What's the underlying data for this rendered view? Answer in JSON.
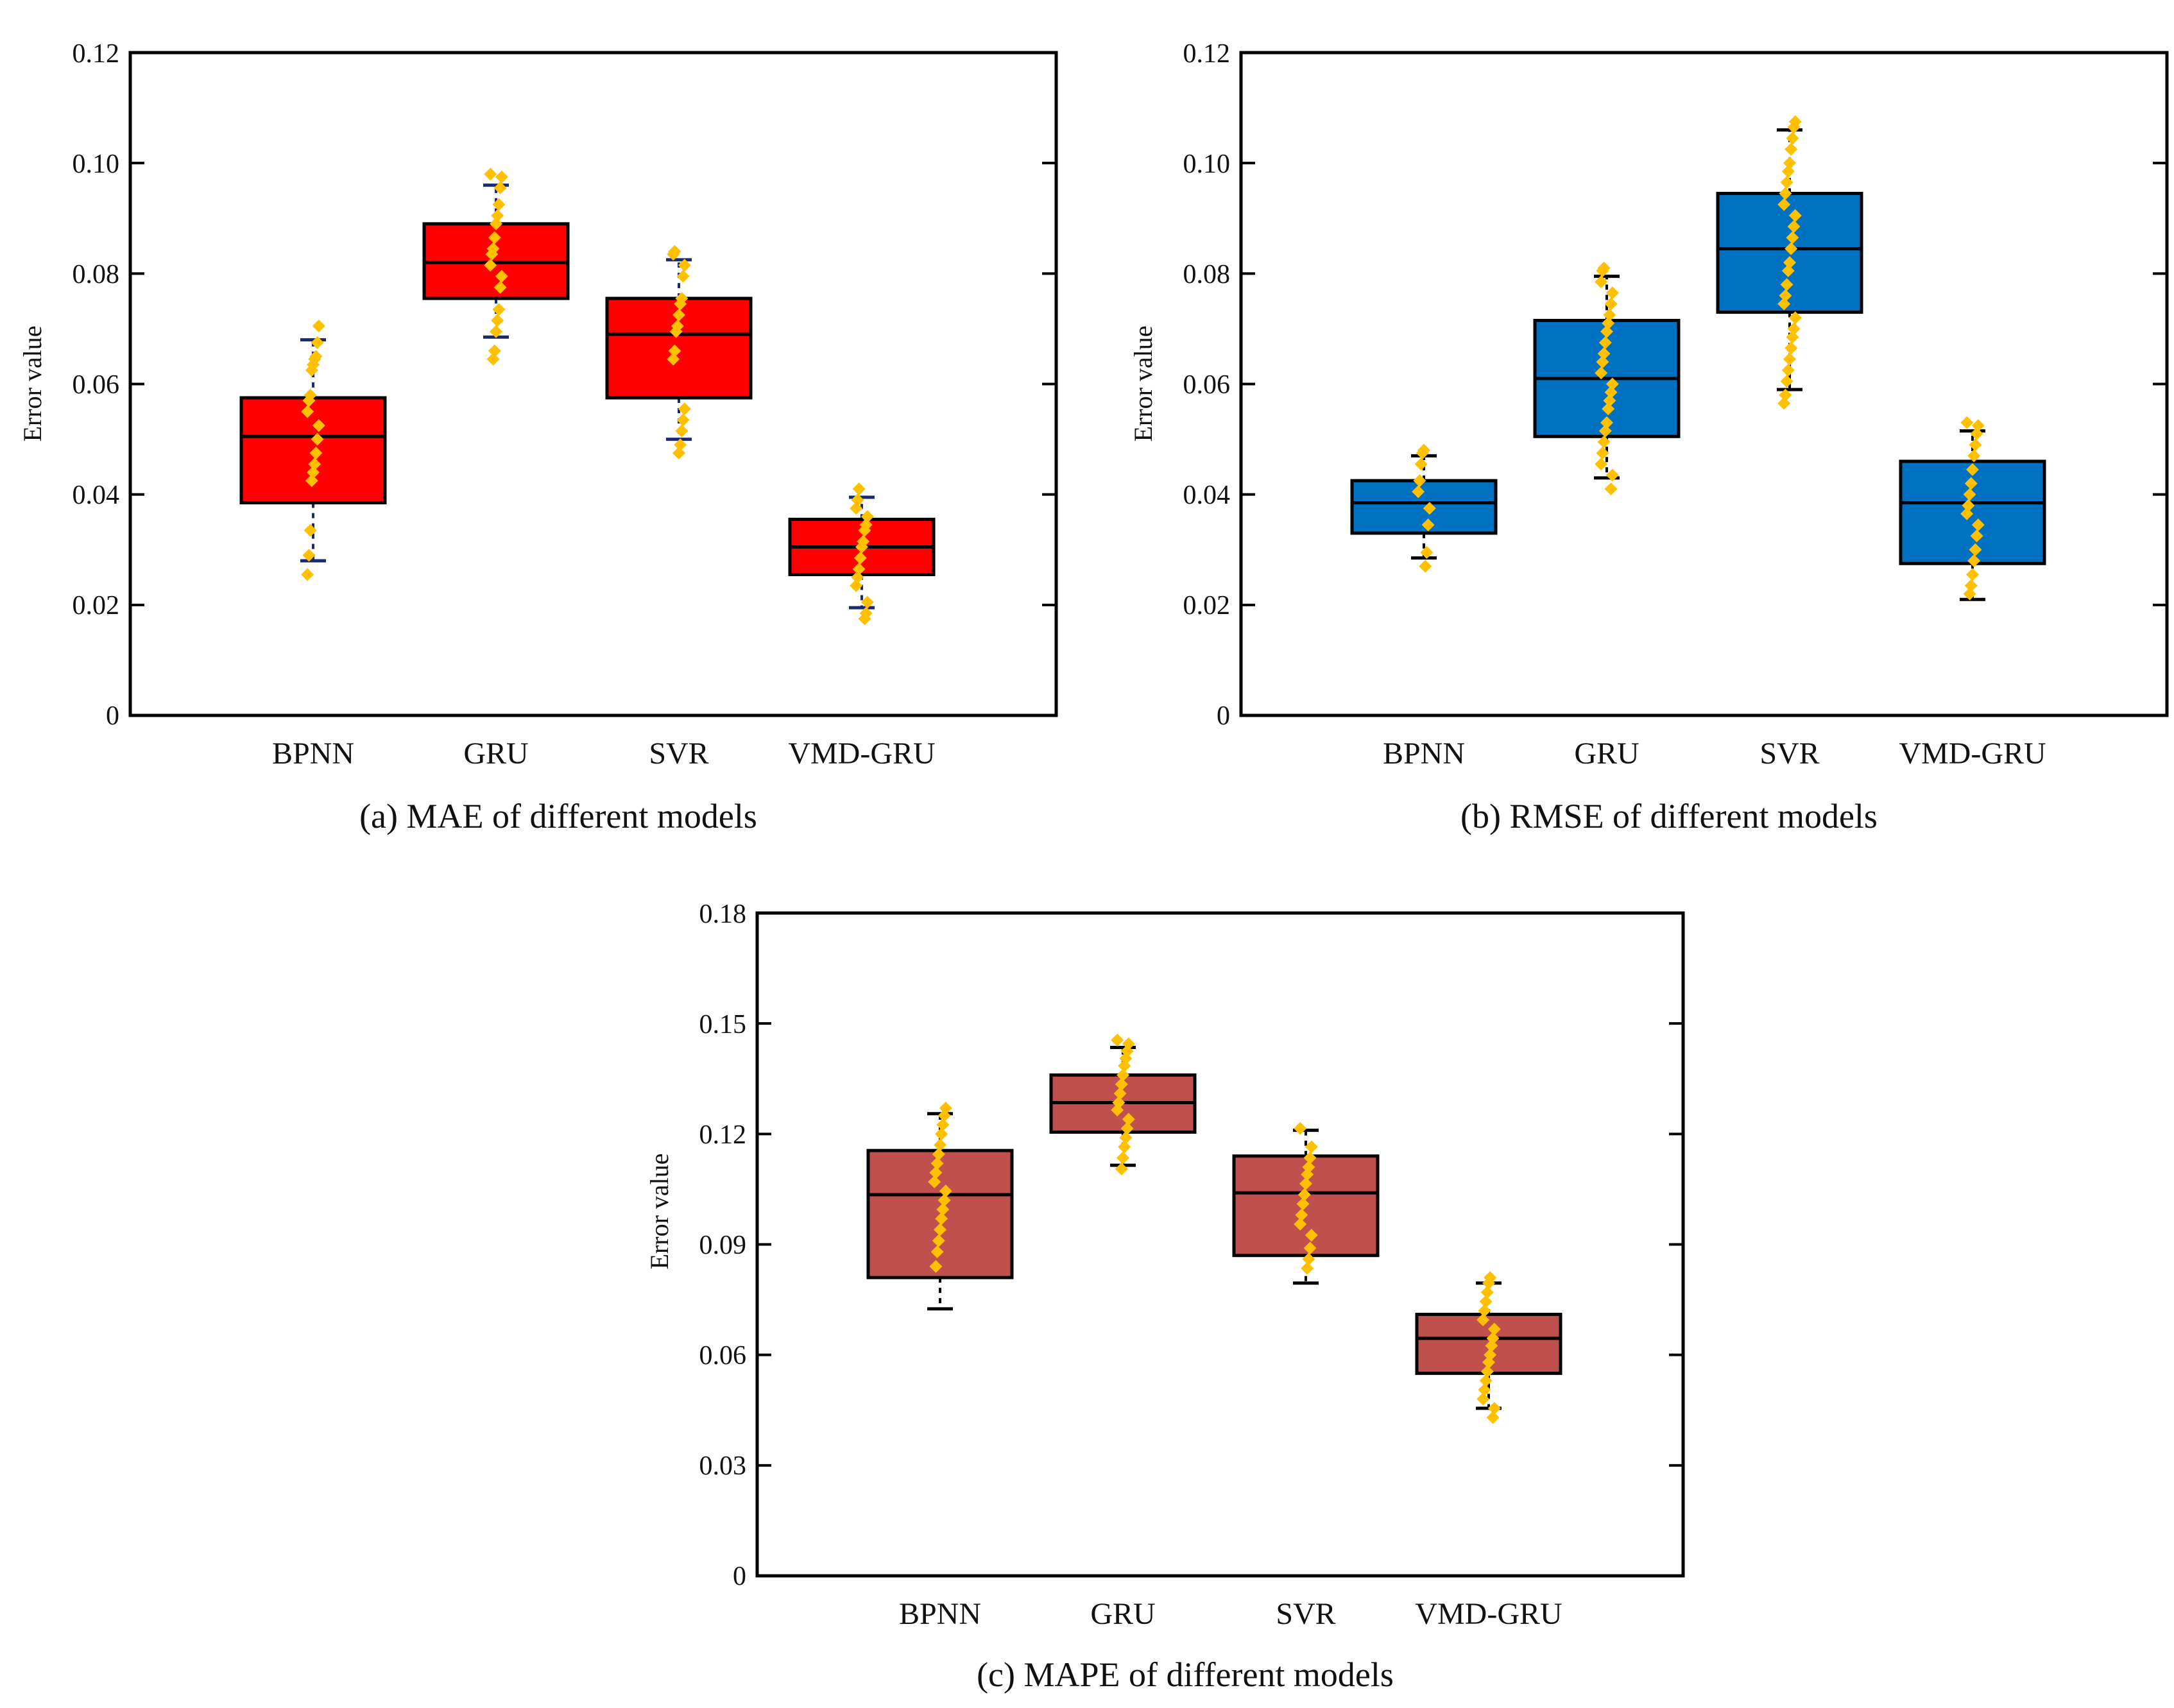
{
  "chart_data": [
    {
      "type": "box",
      "id": "mae",
      "caption": "(a) MAE  of different models",
      "ylabel": "Error value",
      "ylim": [
        0,
        0.12
      ],
      "yticks": [
        0,
        0.02,
        0.04,
        0.06,
        0.08,
        0.1,
        0.12
      ],
      "ytick_labels": [
        "0",
        "0.02",
        "0.04",
        "0.06",
        "0.08",
        "0.10",
        "0.12"
      ],
      "box_color": "#ff0000",
      "whisker_color": "#1a2a6c",
      "point_color": "#ffc000",
      "categories": [
        "BPNN",
        "GRU",
        "SVR",
        "VMD-GRU"
      ],
      "boxes": [
        {
          "whisker_low": 0.028,
          "q1": 0.0385,
          "median": 0.0505,
          "q3": 0.0575,
          "whisker_high": 0.068,
          "points": [
            0.0255,
            0.029,
            0.0335,
            0.0425,
            0.044,
            0.0455,
            0.0475,
            0.05,
            0.0525,
            0.055,
            0.057,
            0.058,
            0.0625,
            0.0635,
            0.0645,
            0.065,
            0.0675,
            0.0705
          ]
        },
        {
          "whisker_low": 0.0685,
          "q1": 0.0755,
          "median": 0.082,
          "q3": 0.089,
          "whisker_high": 0.096,
          "points": [
            0.0645,
            0.066,
            0.0695,
            0.0715,
            0.0735,
            0.0775,
            0.0795,
            0.0815,
            0.0835,
            0.0845,
            0.0865,
            0.089,
            0.0905,
            0.0925,
            0.0955,
            0.0975,
            0.098
          ]
        },
        {
          "whisker_low": 0.05,
          "q1": 0.0575,
          "median": 0.069,
          "q3": 0.0755,
          "whisker_high": 0.0825,
          "points": [
            0.0475,
            0.049,
            0.0515,
            0.0535,
            0.0555,
            0.0645,
            0.066,
            0.0695,
            0.0705,
            0.0725,
            0.0745,
            0.0755,
            0.0795,
            0.0815,
            0.0835,
            0.084
          ]
        },
        {
          "whisker_low": 0.0195,
          "q1": 0.0255,
          "median": 0.0305,
          "q3": 0.0355,
          "whisker_high": 0.0395,
          "points": [
            0.0175,
            0.0185,
            0.0205,
            0.0235,
            0.025,
            0.0265,
            0.0285,
            0.0305,
            0.0315,
            0.0335,
            0.0345,
            0.036,
            0.0375,
            0.039,
            0.041
          ]
        }
      ]
    },
    {
      "type": "box",
      "id": "rmse",
      "caption": "(b) RMSE  of different models",
      "ylabel": "Error value",
      "ylim": [
        0,
        0.12
      ],
      "yticks": [
        0,
        0.02,
        0.04,
        0.06,
        0.08,
        0.1,
        0.12
      ],
      "ytick_labels": [
        "0",
        "0.02",
        "0.04",
        "0.06",
        "0.08",
        "0.10",
        "0.12"
      ],
      "box_color": "#0070c0",
      "whisker_color": "#000000",
      "point_color": "#ffc000",
      "categories": [
        "BPNN",
        "GRU",
        "SVR",
        "VMD-GRU"
      ],
      "boxes": [
        {
          "whisker_low": 0.0285,
          "q1": 0.033,
          "median": 0.0385,
          "q3": 0.0425,
          "whisker_high": 0.047,
          "points": [
            0.027,
            0.0295,
            0.0345,
            0.0375,
            0.0405,
            0.0425,
            0.0455,
            0.0475,
            0.048
          ]
        },
        {
          "whisker_low": 0.043,
          "q1": 0.0505,
          "median": 0.061,
          "q3": 0.0715,
          "whisker_high": 0.0795,
          "points": [
            0.041,
            0.0435,
            0.0455,
            0.0475,
            0.0495,
            0.0515,
            0.053,
            0.0555,
            0.057,
            0.0585,
            0.06,
            0.062,
            0.064,
            0.0655,
            0.0675,
            0.0695,
            0.071,
            0.0725,
            0.0745,
            0.0765,
            0.0785,
            0.0805,
            0.081
          ]
        },
        {
          "whisker_low": 0.059,
          "q1": 0.073,
          "median": 0.0845,
          "q3": 0.0945,
          "whisker_high": 0.106,
          "points": [
            0.0565,
            0.058,
            0.0605,
            0.0625,
            0.0645,
            0.0665,
            0.0685,
            0.07,
            0.072,
            0.0745,
            0.076,
            0.078,
            0.0805,
            0.082,
            0.0845,
            0.0865,
            0.0885,
            0.0905,
            0.0925,
            0.0945,
            0.0965,
            0.0985,
            0.1,
            0.1025,
            0.1045,
            0.1065,
            0.1075
          ]
        },
        {
          "whisker_low": 0.021,
          "q1": 0.0275,
          "median": 0.0385,
          "q3": 0.046,
          "whisker_high": 0.0515,
          "points": [
            0.022,
            0.0235,
            0.0255,
            0.028,
            0.03,
            0.0325,
            0.0345,
            0.0365,
            0.038,
            0.04,
            0.042,
            0.0445,
            0.047,
            0.049,
            0.051,
            0.0525,
            0.053
          ]
        }
      ]
    },
    {
      "type": "box",
      "id": "mape",
      "caption": "(c) MAPE  of different models",
      "ylabel": "Error value",
      "ylim": [
        0,
        0.18
      ],
      "yticks": [
        0,
        0.03,
        0.06,
        0.09,
        0.12,
        0.15,
        0.18
      ],
      "ytick_labels": [
        "0",
        "0.03",
        "0.06",
        "0.09",
        "0.12",
        "0.15",
        "0.18"
      ],
      "box_color": "#c0504d",
      "whisker_color": "#000000",
      "point_color": "#ffc000",
      "categories": [
        "BPNN",
        "GRU",
        "SVR",
        "VMD-GRU"
      ],
      "boxes": [
        {
          "whisker_low": 0.0725,
          "q1": 0.081,
          "median": 0.1035,
          "q3": 0.1155,
          "whisker_high": 0.1255,
          "points": [
            0.084,
            0.088,
            0.091,
            0.094,
            0.097,
            0.0995,
            0.102,
            0.1045,
            0.107,
            0.1095,
            0.112,
            0.1145,
            0.117,
            0.12,
            0.1225,
            0.125,
            0.127
          ]
        },
        {
          "whisker_low": 0.1115,
          "q1": 0.1205,
          "median": 0.1285,
          "q3": 0.136,
          "whisker_high": 0.1435,
          "points": [
            0.1105,
            0.1135,
            0.1165,
            0.119,
            0.1215,
            0.124,
            0.1265,
            0.1285,
            0.131,
            0.1335,
            0.136,
            0.1385,
            0.1405,
            0.1425,
            0.1445,
            0.1455
          ]
        },
        {
          "whisker_low": 0.0795,
          "q1": 0.087,
          "median": 0.104,
          "q3": 0.114,
          "whisker_high": 0.121,
          "points": [
            0.0835,
            0.086,
            0.089,
            0.0925,
            0.0955,
            0.098,
            0.101,
            0.1035,
            0.1065,
            0.109,
            0.111,
            0.1135,
            0.1165,
            0.1215
          ]
        },
        {
          "whisker_low": 0.0455,
          "q1": 0.055,
          "median": 0.0645,
          "q3": 0.071,
          "whisker_high": 0.0795,
          "points": [
            0.043,
            0.0455,
            0.048,
            0.0505,
            0.053,
            0.0555,
            0.058,
            0.06,
            0.0625,
            0.0645,
            0.067,
            0.0695,
            0.072,
            0.0745,
            0.077,
            0.0795,
            0.081
          ]
        }
      ]
    }
  ]
}
